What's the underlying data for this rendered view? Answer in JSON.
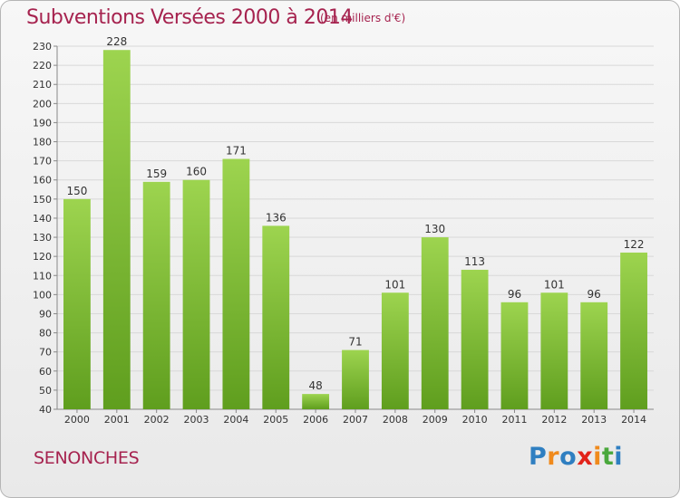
{
  "title": "Subventions Versées 2000 à 2014",
  "subtitle": "(en milliers d'€)",
  "place": "SENONCHES",
  "logo": {
    "text": "Proxiti",
    "letter_colors": [
      "#2f7fc1",
      "#f08a1c",
      "#2f7fc1",
      "#e2231a",
      "#f08a1c",
      "#4aa83c",
      "#2f7fc1"
    ]
  },
  "colors": {
    "title": "#a6234f",
    "bar_top": "#9dd44f",
    "bar_bottom": "#5f9e1e"
  },
  "chart_data": {
    "type": "bar",
    "categories": [
      "2000",
      "2001",
      "2002",
      "2003",
      "2004",
      "2005",
      "2006",
      "2007",
      "2008",
      "2009",
      "2010",
      "2011",
      "2012",
      "2013",
      "2014"
    ],
    "values": [
      150,
      228,
      159,
      160,
      171,
      136,
      48,
      71,
      101,
      130,
      113,
      96,
      101,
      96,
      122
    ],
    "title": "Subventions Versées 2000 à 2014",
    "subtitle": "(en milliers d'€)",
    "xlabel": "",
    "ylabel": "",
    "ylim": [
      40,
      230
    ],
    "yticks": [
      40,
      50,
      60,
      70,
      80,
      90,
      100,
      110,
      120,
      130,
      140,
      150,
      160,
      170,
      180,
      190,
      200,
      210,
      220,
      230
    ],
    "grid": true,
    "legend": "none"
  }
}
